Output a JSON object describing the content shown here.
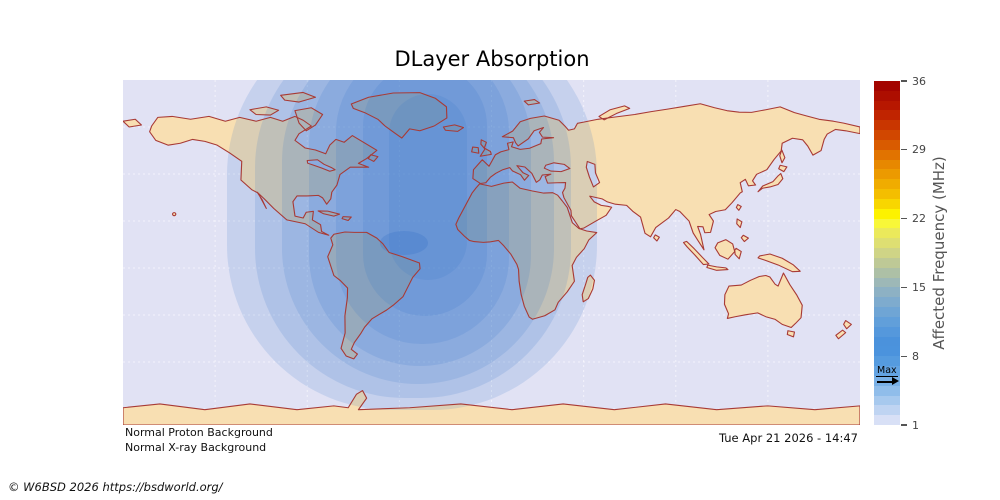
{
  "title": "DLayer Absorption",
  "colorbar": {
    "label": "Affected Frequency (MHz)",
    "ticks": [
      36,
      29,
      22,
      15,
      8,
      1
    ],
    "range": [
      1,
      36
    ],
    "segments": 35,
    "max_marker": {
      "label": "Max",
      "value": 6.5
    },
    "scale": [
      {
        "v": 36,
        "c": "#9e0000"
      },
      {
        "v": 33,
        "c": "#bc1c00"
      },
      {
        "v": 30,
        "c": "#d65000"
      },
      {
        "v": 28,
        "c": "#e57f00"
      },
      {
        "v": 26,
        "c": "#efa300"
      },
      {
        "v": 24,
        "c": "#f6c800"
      },
      {
        "v": 22.5,
        "c": "#fdf200"
      },
      {
        "v": 22,
        "c": "#ffff20"
      },
      {
        "v": 21,
        "c": "#f2ef50"
      },
      {
        "v": 19,
        "c": "#d8da7e"
      },
      {
        "v": 17,
        "c": "#b6c49e"
      },
      {
        "v": 15,
        "c": "#95b5c0"
      },
      {
        "v": 13,
        "c": "#77a8d3"
      },
      {
        "v": 11,
        "c": "#5a9cdd"
      },
      {
        "v": 9,
        "c": "#478fdc"
      },
      {
        "v": 8,
        "c": "#4f97de"
      },
      {
        "v": 6.5,
        "c": "#63a3e2"
      },
      {
        "v": 5,
        "c": "#85b7e9"
      },
      {
        "v": 3,
        "c": "#b3cff0"
      },
      {
        "v": 1.5,
        "c": "#d8e0f6"
      },
      {
        "v": 1,
        "c": "#e7eaf9"
      }
    ]
  },
  "status": {
    "proton": "Normal Proton Background",
    "xray": "Normal X-ray Background"
  },
  "timestamp": "Tue Apr 21 2026 - 14:47",
  "copyright": "© W6BSD 2026 https://bsdworld.org/",
  "theme": {
    "ocean": "#e1e2f4",
    "land": "#f8dfb2",
    "coast": "#a83a35",
    "band_fill": "rgba(47,112,202,0.15)",
    "core_fill": "rgba(40,105,195,0.22)",
    "grid_line": "rgba(255,255,255,0.6)"
  },
  "chart_data": {
    "type": "heatmap",
    "title": "DLayer Absorption",
    "colorbar_label": "Affected Frequency (MHz)",
    "colorbar_ticks": [
      36,
      29,
      22,
      15,
      8,
      1
    ],
    "value_range_mhz": [
      1,
      36
    ],
    "max_affected_frequency_mhz": 6.5,
    "absorption_region": "Dayside D-layer absorption bullseye centered over the equatorial Atlantic (~40W, ~10N), concentric bands covering the Americas, Greenland, Europe and western Africa; nightside (Asia, Australia, Pacific) shows no absorption",
    "annotations": [
      "Normal Proton Background",
      "Normal X-ray Background"
    ],
    "timestamp": "Tue Apr 21 2026 - 14:47",
    "projection": "equirectangular world map, full globe",
    "legend_position": "right"
  }
}
